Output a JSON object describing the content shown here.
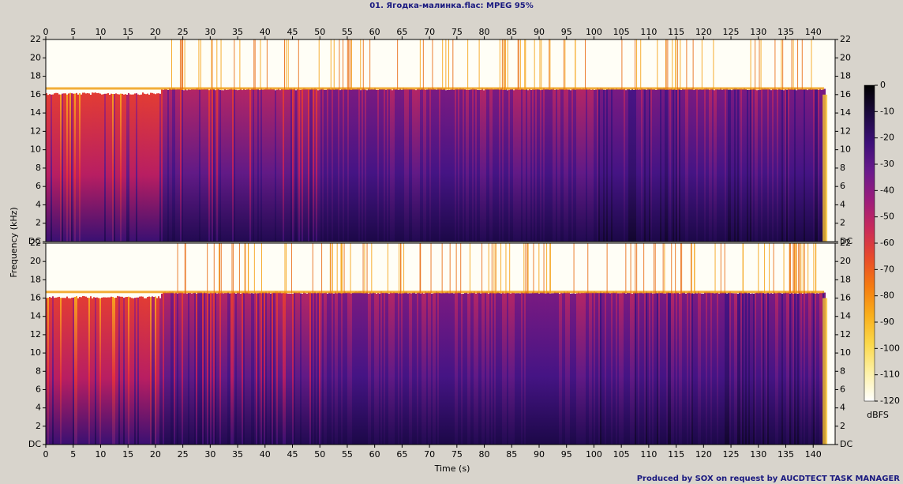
{
  "chart_data": {
    "type": "spectrogram",
    "title": "01. Ягодка-малинка.flac: MPEG 95%",
    "x_label": "Time (s)",
    "y_label": "Frequency (kHz)",
    "xlim": [
      0,
      144
    ],
    "xticks": [
      0,
      5,
      10,
      15,
      20,
      25,
      30,
      35,
      40,
      45,
      50,
      55,
      60,
      65,
      70,
      75,
      80,
      85,
      90,
      95,
      100,
      105,
      110,
      115,
      120,
      125,
      130,
      135,
      140
    ],
    "ylim": [
      0,
      22
    ],
    "yticks": [
      {
        "value": 0,
        "label": "DC"
      },
      2,
      4,
      6,
      8,
      10,
      12,
      14,
      16,
      18,
      20,
      22
    ],
    "colorbar": {
      "label": "dBFS",
      "lim": [
        -120,
        0
      ],
      "ticks": [
        0,
        -10,
        -20,
        -30,
        -40,
        -50,
        -60,
        -70,
        -80,
        -90,
        -100,
        -110,
        -120
      ],
      "colormap": [
        "#000000",
        "#1c0a3f",
        "#3d0f78",
        "#6a1a8c",
        "#9c1c7c",
        "#c92a5a",
        "#e84a2a",
        "#f57b10",
        "#f9ae1a",
        "#fbd84a",
        "#fdf1a6",
        "#ffffff"
      ]
    }
  },
  "credit": "Produced by SOX on request by AUCDTECT TASK MANAGER"
}
